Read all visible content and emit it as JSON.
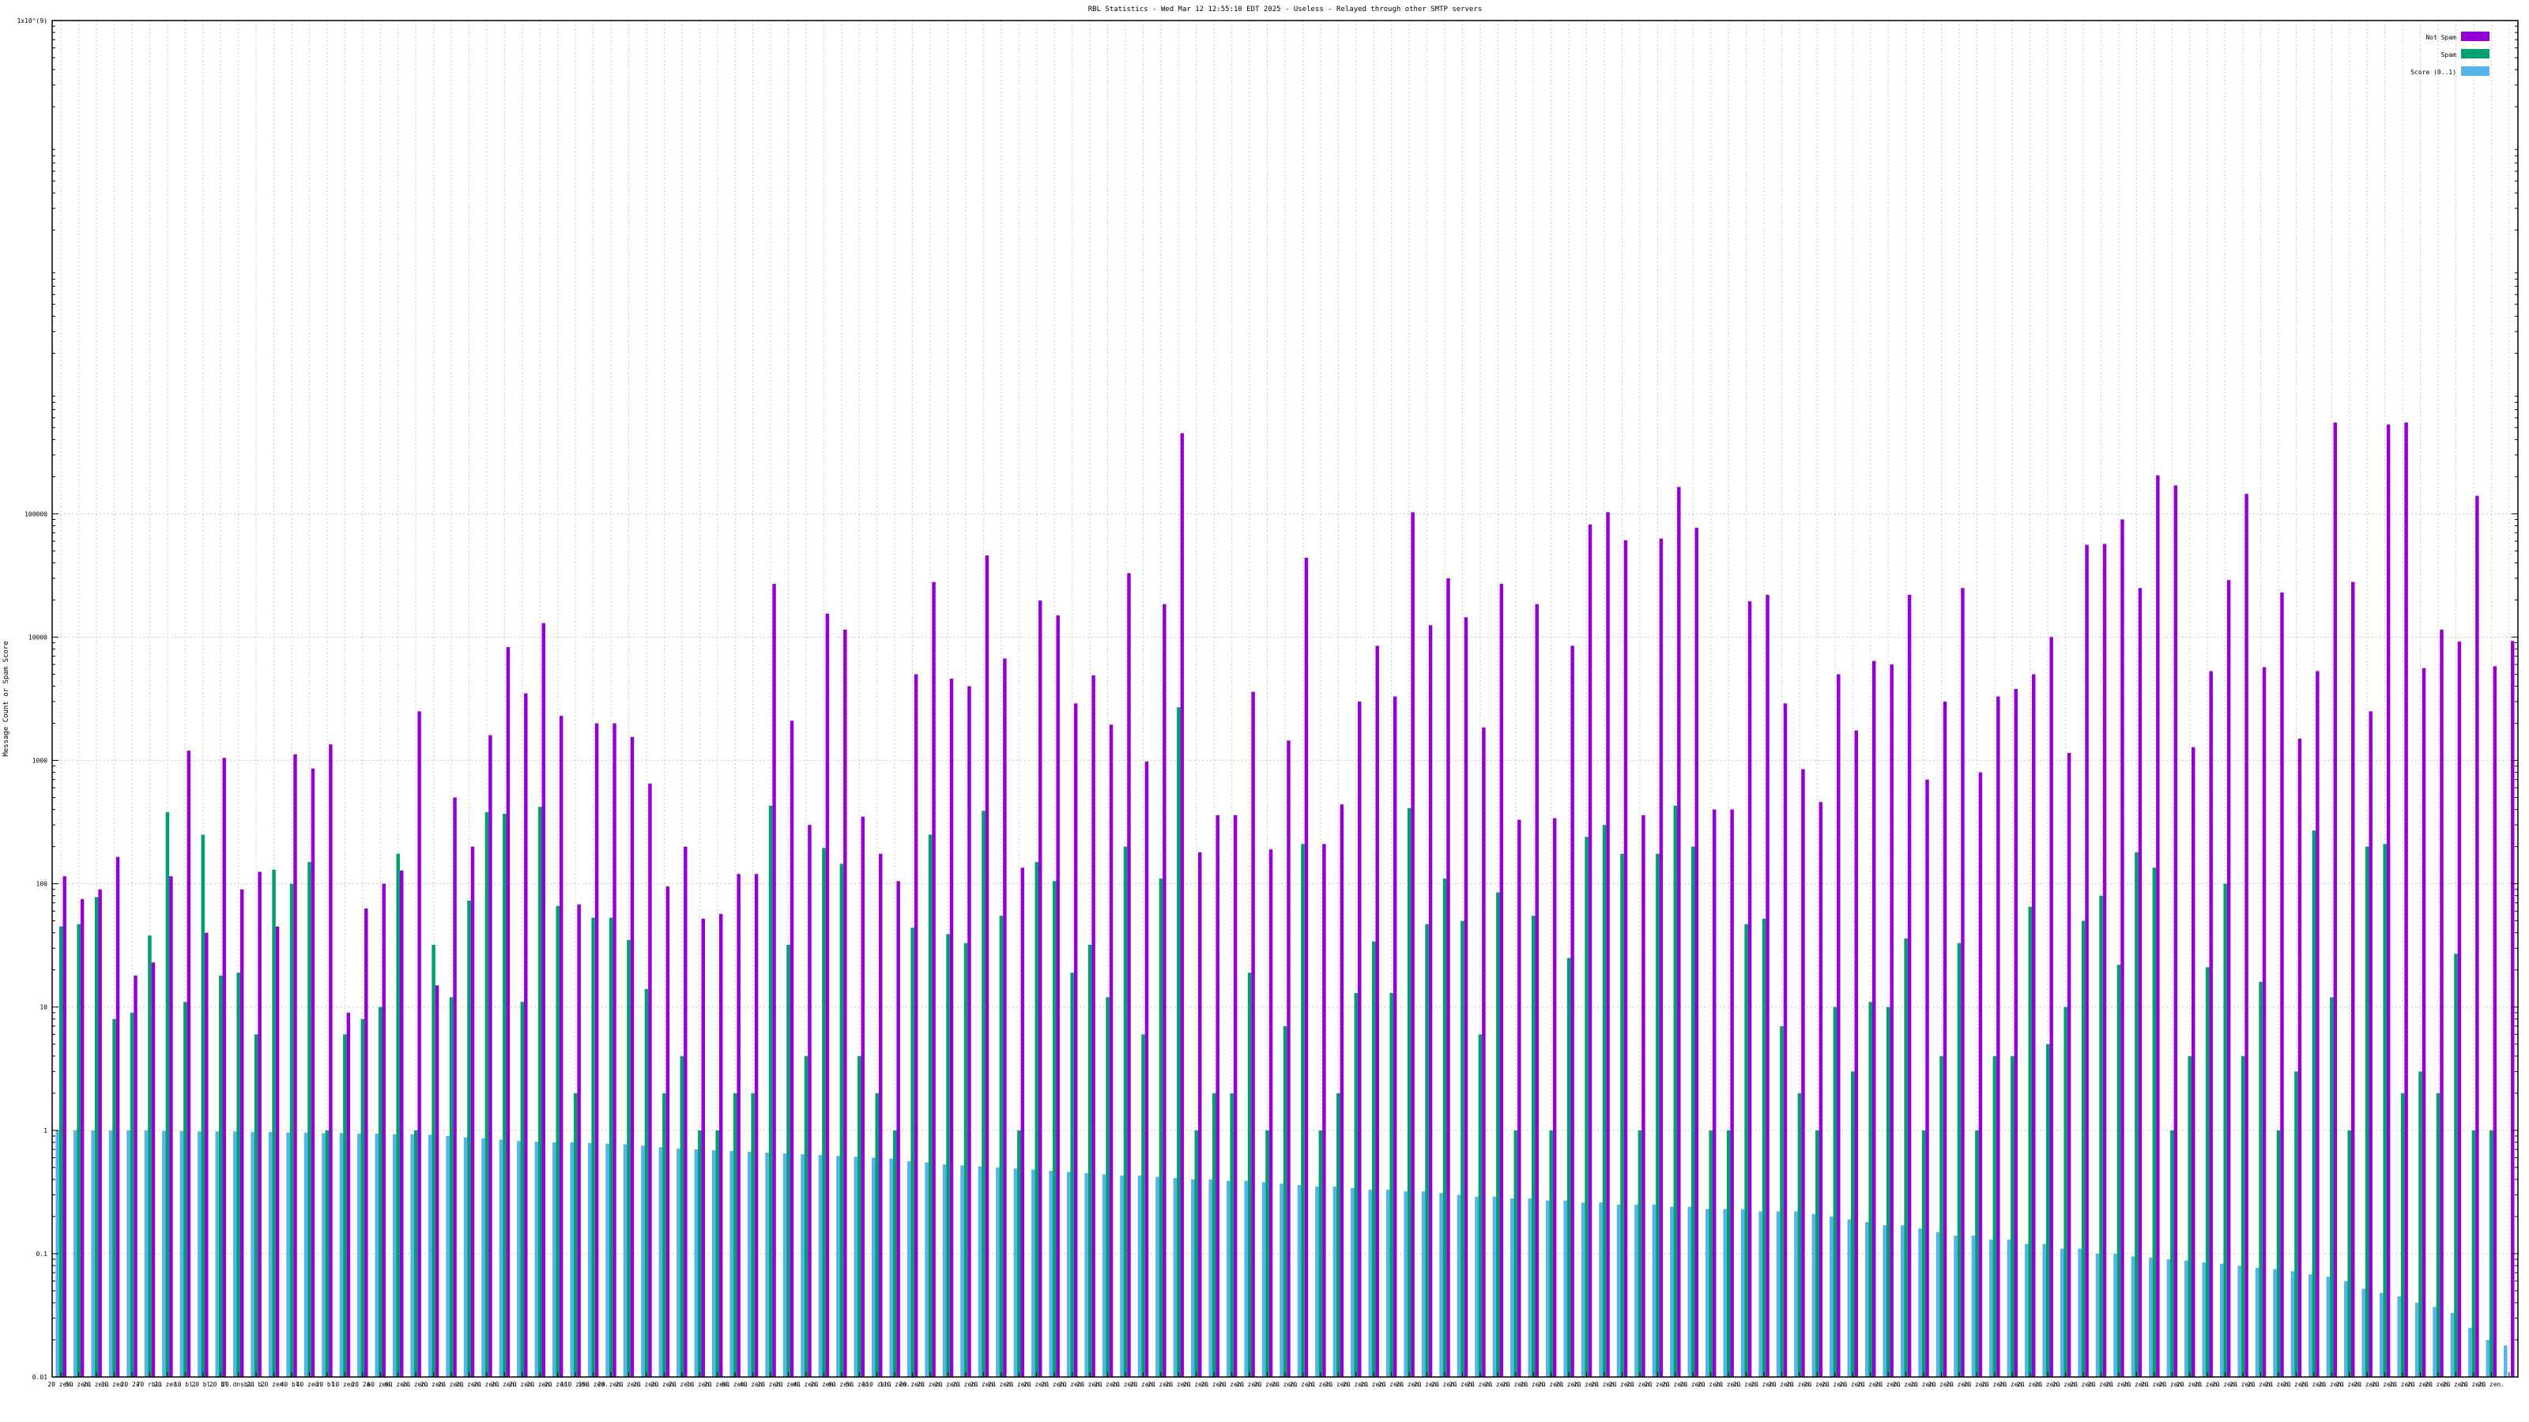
{
  "chart_data": {
    "type": "bar",
    "title": "RBL Statistics - Wed Mar 12 12:55:10 EDT 2025 - Useless - Relayed through other SMTP servers",
    "ylabel": "Message Count or Spam Score",
    "yscale": "log",
    "ylim": [
      0.01,
      1000000000
    ],
    "yticks": [
      {
        "value": 1000000000,
        "label": "1x10^(9)"
      },
      {
        "value": 100000,
        "label": "100000"
      },
      {
        "value": 10000,
        "label": "10000"
      },
      {
        "value": 1000,
        "label": "1000"
      },
      {
        "value": 100,
        "label": "100"
      },
      {
        "value": 10,
        "label": "10"
      },
      {
        "value": 1,
        "label": "1"
      },
      {
        "value": 0.1,
        "label": "0.1"
      },
      {
        "value": 0.01,
        "label": "0.01"
      }
    ],
    "grid": true,
    "legend_position": "top-right",
    "colors": {
      "not_spam": "#9400d3",
      "spam": "#009e73",
      "score": "#56b4e9",
      "grid": "#c8c8c8",
      "axis": "#000000"
    },
    "category_labels": [
      "20 zen.",
      "50 zen.",
      "20 zen.",
      "10 zen.",
      "20 2a.",
      "70 rbl.",
      "20 zen.",
      "10 bl.",
      "20 bl.",
      "20 bl.",
      "20 dnsbl.",
      "20 b.",
      "20 zen.",
      "40 bl.",
      "40 zen.",
      "20 bl.",
      "10 zen.",
      "20 2a.",
      "60 zen.",
      "60 zen.",
      "20 zen.",
      "20 zen.",
      "20 zen.",
      "20 zen.",
      "20 zen.",
      "20 zen.",
      "20 zen.",
      "20 zen.",
      "20 zen.",
      "110 zen.",
      "150 zen.",
      "20 zen.",
      "20 zen.",
      "20 zen.",
      "20 zen.",
      "20 zen.",
      "10 zen.",
      "20 zen.",
      "60 zen.",
      "40 zen.",
      "20 zen.",
      "20 zen.",
      "40 zen.",
      "20 zen.",
      "60 zen.",
      "50 zen.",
      "110 zen.",
      "110 zen.",
      "20 zen.",
      "20 zen.",
      "20 zen.",
      "20 zen.",
      "20 zen.",
      "20 zen.",
      "20 zen.",
      "20 zen.",
      "20 zen.",
      "20 zen.",
      "20 zen.",
      "20 zen.",
      "20 zen.",
      "20 zen.",
      "20 zen.",
      "20 zen.",
      "20 zen.",
      "20 zen.",
      "20 zen.",
      "20 zen.",
      "20 zen.",
      "20 zen.",
      "20 zen.",
      "20 zen.",
      "20 zen.",
      "20 zen.",
      "20 zen.",
      "20 zen.",
      "20 zen.",
      "20 zen.",
      "20 zen.",
      "20 zen.",
      "20 zen.",
      "20 zen.",
      "20 zen.",
      "20 zen.",
      "20 zen.",
      "20 zen.",
      "20 zen.",
      "20 zen.",
      "20 zen.",
      "20 zen.",
      "20 zen.",
      "20 zen.",
      "20 zen.",
      "20 zen.",
      "20 zen.",
      "20 zen.",
      "20 zen.",
      "20 zen.",
      "20 zen.",
      "20 zen.",
      "20 zen.",
      "20 zen.",
      "20 zen.",
      "20 zen.",
      "20 zen.",
      "20 zen.",
      "20 zen.",
      "20 zen.",
      "20 zen.",
      "20 zen.",
      "20 zen.",
      "20 zen.",
      "20 zen.",
      "20 zen.",
      "20 zen.",
      "20 zen.",
      "20 zen.",
      "20 zen.",
      "20 zen.",
      "20 zen.",
      "20 zen.",
      "20 zen.",
      "20 zen.",
      "20 zen.",
      "20 zen.",
      "20 zen.",
      "20 zen.",
      "20 zen.",
      "20 zen.",
      "20 zen.",
      "20 zen.",
      "20 zen.",
      "20 zen.",
      "20 zen.",
      "20 zen.",
      "20 zen.",
      "20 zen.",
      "20 zen."
    ],
    "series": [
      {
        "name": "Not Spam",
        "values": [
          115,
          75,
          90,
          165,
          18,
          23,
          115,
          1200,
          40,
          1050,
          90,
          125,
          45,
          1120,
          860,
          1350,
          9,
          63,
          100,
          128,
          2500,
          15,
          500,
          200,
          1600,
          8300,
          3500,
          13000,
          2300,
          68,
          2000,
          2000,
          1550,
          650,
          95,
          200,
          52,
          57,
          120,
          120,
          27000,
          2100,
          300,
          15500,
          11500,
          350,
          175,
          105,
          5000,
          28000,
          4600,
          4000,
          46000,
          6700,
          135,
          19800,
          15000,
          2900,
          4900,
          1950,
          33000,
          980,
          18500,
          450000,
          180,
          360,
          360,
          3600,
          190,
          1450,
          44000,
          210,
          440,
          3000,
          8500,
          3300,
          103000,
          12500,
          30000,
          14500,
          1850,
          27000,
          330,
          18500,
          340,
          8500,
          82000,
          103000,
          61000,
          360,
          63000,
          165000,
          77000,
          400,
          400,
          19500,
          22000,
          2900,
          850,
          460,
          5000,
          1750,
          6400,
          6000,
          22000,
          700,
          3000,
          25000,
          800,
          3300,
          3800,
          5000,
          10000,
          1150,
          56000,
          57000,
          90000,
          25000,
          205000,
          170000,
          1280,
          5300,
          29000,
          145000,
          5700,
          23000,
          1500,
          5300,
          550000,
          28000,
          2500,
          530000,
          550000,
          5600,
          11500,
          9200,
          140000,
          5800,
          9300
        ],
        "color": "#9400d3"
      },
      {
        "name": "Spam",
        "values": [
          45,
          47,
          78,
          8,
          9,
          38,
          380,
          11,
          250,
          18,
          19,
          6,
          130,
          100,
          150,
          1,
          6,
          8,
          10,
          175,
          1,
          32,
          12,
          73,
          380,
          370,
          11,
          420,
          66,
          2,
          53,
          53,
          35,
          14,
          2,
          4,
          1,
          1,
          2,
          2,
          430,
          32,
          4,
          195,
          145,
          4,
          2,
          1,
          44,
          250,
          39,
          33,
          390,
          55,
          1,
          150,
          105,
          19,
          32,
          12,
          200,
          6,
          110,
          2700,
          1,
          2,
          2,
          19,
          1,
          7,
          210,
          1,
          2,
          13,
          34,
          13,
          410,
          47,
          110,
          50,
          6,
          85,
          1,
          55,
          1,
          25,
          240,
          300,
          175,
          1,
          175,
          430,
          200,
          1,
          1,
          47,
          52,
          7,
          2,
          1,
          10,
          3,
          11,
          10,
          36,
          1,
          4,
          33,
          1,
          4,
          4,
          65,
          5,
          10,
          50,
          80,
          22,
          180,
          135,
          1,
          4,
          21,
          100,
          4,
          16,
          1,
          3,
          270,
          12,
          1,
          200,
          210,
          2,
          3,
          2,
          27,
          1,
          1
        ],
        "color": "#009e73"
      },
      {
        "name": "Score (0..1)",
        "values": [
          1.0,
          1.0,
          1.0,
          1.0,
          1.0,
          1.0,
          0.99,
          0.99,
          0.98,
          0.98,
          0.98,
          0.97,
          0.97,
          0.96,
          0.96,
          0.95,
          0.95,
          0.94,
          0.94,
          0.93,
          0.93,
          0.92,
          0.9,
          0.88,
          0.86,
          0.84,
          0.82,
          0.81,
          0.8,
          0.8,
          0.79,
          0.78,
          0.77,
          0.75,
          0.73,
          0.71,
          0.7,
          0.69,
          0.68,
          0.67,
          0.66,
          0.65,
          0.64,
          0.63,
          0.62,
          0.61,
          0.6,
          0.59,
          0.56,
          0.55,
          0.53,
          0.52,
          0.51,
          0.5,
          0.49,
          0.48,
          0.47,
          0.46,
          0.45,
          0.44,
          0.43,
          0.43,
          0.42,
          0.41,
          0.4,
          0.4,
          0.39,
          0.39,
          0.38,
          0.37,
          0.36,
          0.35,
          0.35,
          0.34,
          0.33,
          0.33,
          0.32,
          0.32,
          0.31,
          0.3,
          0.29,
          0.29,
          0.28,
          0.28,
          0.27,
          0.27,
          0.26,
          0.26,
          0.25,
          0.25,
          0.25,
          0.24,
          0.24,
          0.23,
          0.23,
          0.23,
          0.22,
          0.22,
          0.22,
          0.21,
          0.2,
          0.19,
          0.18,
          0.17,
          0.17,
          0.16,
          0.15,
          0.14,
          0.14,
          0.13,
          0.13,
          0.12,
          0.12,
          0.11,
          0.11,
          0.1,
          0.1,
          0.095,
          0.093,
          0.09,
          0.088,
          0.085,
          0.083,
          0.08,
          0.077,
          0.075,
          0.072,
          0.068,
          0.065,
          0.06,
          0.052,
          0.048,
          0.045,
          0.04,
          0.037,
          0.033,
          0.025,
          0.02,
          0.018,
          0.012
        ],
        "color": "#56b4e9"
      }
    ]
  }
}
